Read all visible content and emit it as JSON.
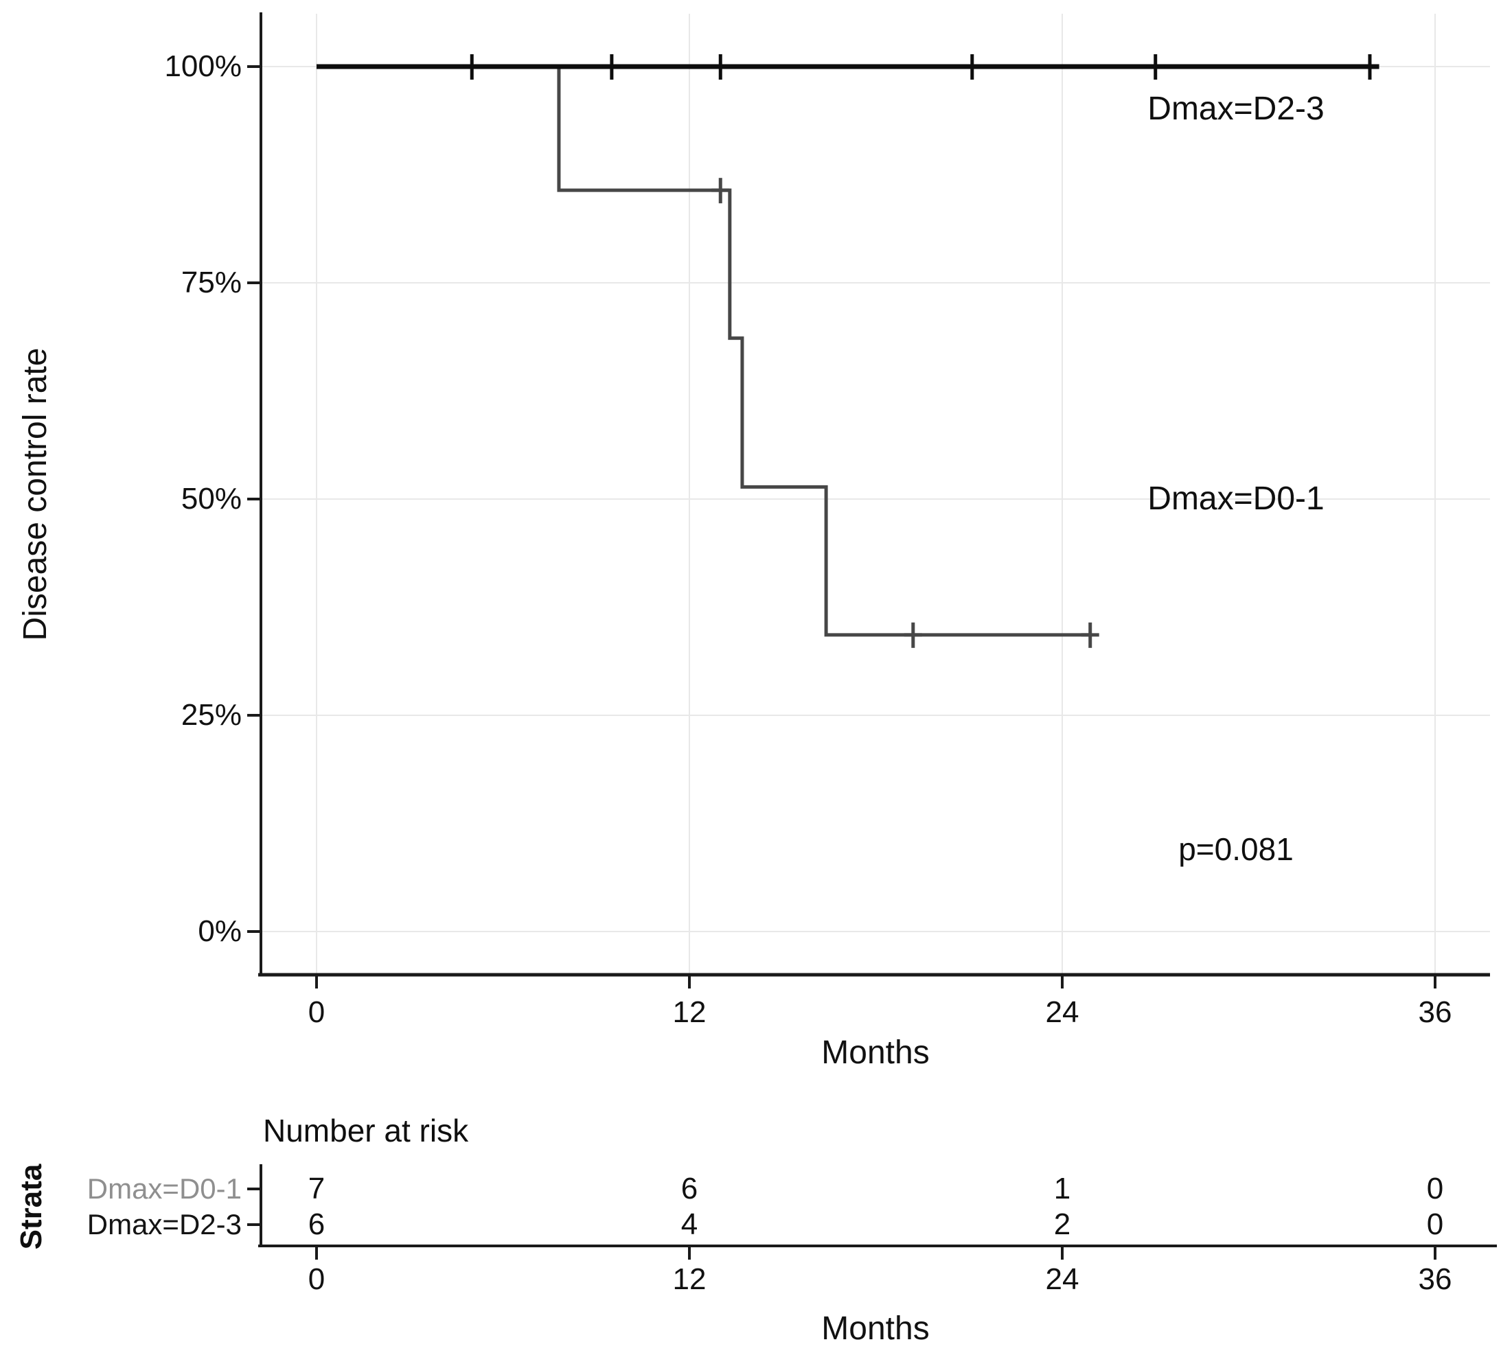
{
  "figure": {
    "background": "#ffffff",
    "grid_color": "#e8e8e8",
    "axis_color": "#1a1a1a"
  },
  "chart_data": {
    "type": "line",
    "subtype": "kaplan-meier-step",
    "title": "",
    "xlabel": "Months",
    "ylabel": "Disease control rate",
    "xlim": [
      -1.8,
      37.8
    ],
    "ylim": [
      -5,
      106
    ],
    "grid": true,
    "x_ticks": [
      "0",
      "12",
      "24",
      "36"
    ],
    "x_tick_values": [
      0,
      12,
      24,
      36
    ],
    "y_ticks": [
      "0%",
      "25%",
      "50%",
      "75%",
      "100%"
    ],
    "y_tick_values": [
      0,
      25,
      50,
      75,
      100
    ],
    "series": [
      {
        "name": "Dmax=D2-3",
        "color": "#0d0d0d",
        "stroke_width": 7,
        "points": [
          [
            0,
            100
          ],
          [
            34.2,
            100
          ]
        ],
        "censors": [
          [
            5.0,
            100
          ],
          [
            9.5,
            100
          ],
          [
            13.0,
            100
          ],
          [
            21.1,
            100
          ],
          [
            27.0,
            100
          ],
          [
            33.9,
            100
          ]
        ]
      },
      {
        "name": "Dmax=D0-1",
        "color": "#474747",
        "stroke_width": 5,
        "points": [
          [
            0,
            100
          ],
          [
            7.8,
            100
          ],
          [
            7.8,
            85.7
          ],
          [
            13.3,
            85.7
          ],
          [
            13.3,
            68.6
          ],
          [
            13.7,
            68.6
          ],
          [
            13.7,
            51.4
          ],
          [
            16.4,
            51.4
          ],
          [
            16.4,
            34.3
          ],
          [
            24.9,
            34.3
          ]
        ],
        "censors": [
          [
            13.0,
            85.7
          ],
          [
            19.2,
            34.3
          ],
          [
            24.9,
            34.3
          ]
        ]
      }
    ],
    "annotations": [
      {
        "text": "Dmax=D2-3"
      },
      {
        "text": "Dmax=D0-1"
      },
      {
        "text": "p=0.081"
      }
    ]
  },
  "risk_table": {
    "title": "Number at risk",
    "strata_label": "Strata",
    "xlabel": "Months",
    "x_ticks": [
      "0",
      "12",
      "24",
      "36"
    ],
    "rows": [
      {
        "label": "Dmax=D0-1",
        "color": "#8f8f8f",
        "values": [
          "7",
          "6",
          "1",
          "0"
        ]
      },
      {
        "label": "Dmax=D2-3",
        "color": "#141414",
        "values": [
          "6",
          "4",
          "2",
          "0"
        ]
      }
    ]
  }
}
